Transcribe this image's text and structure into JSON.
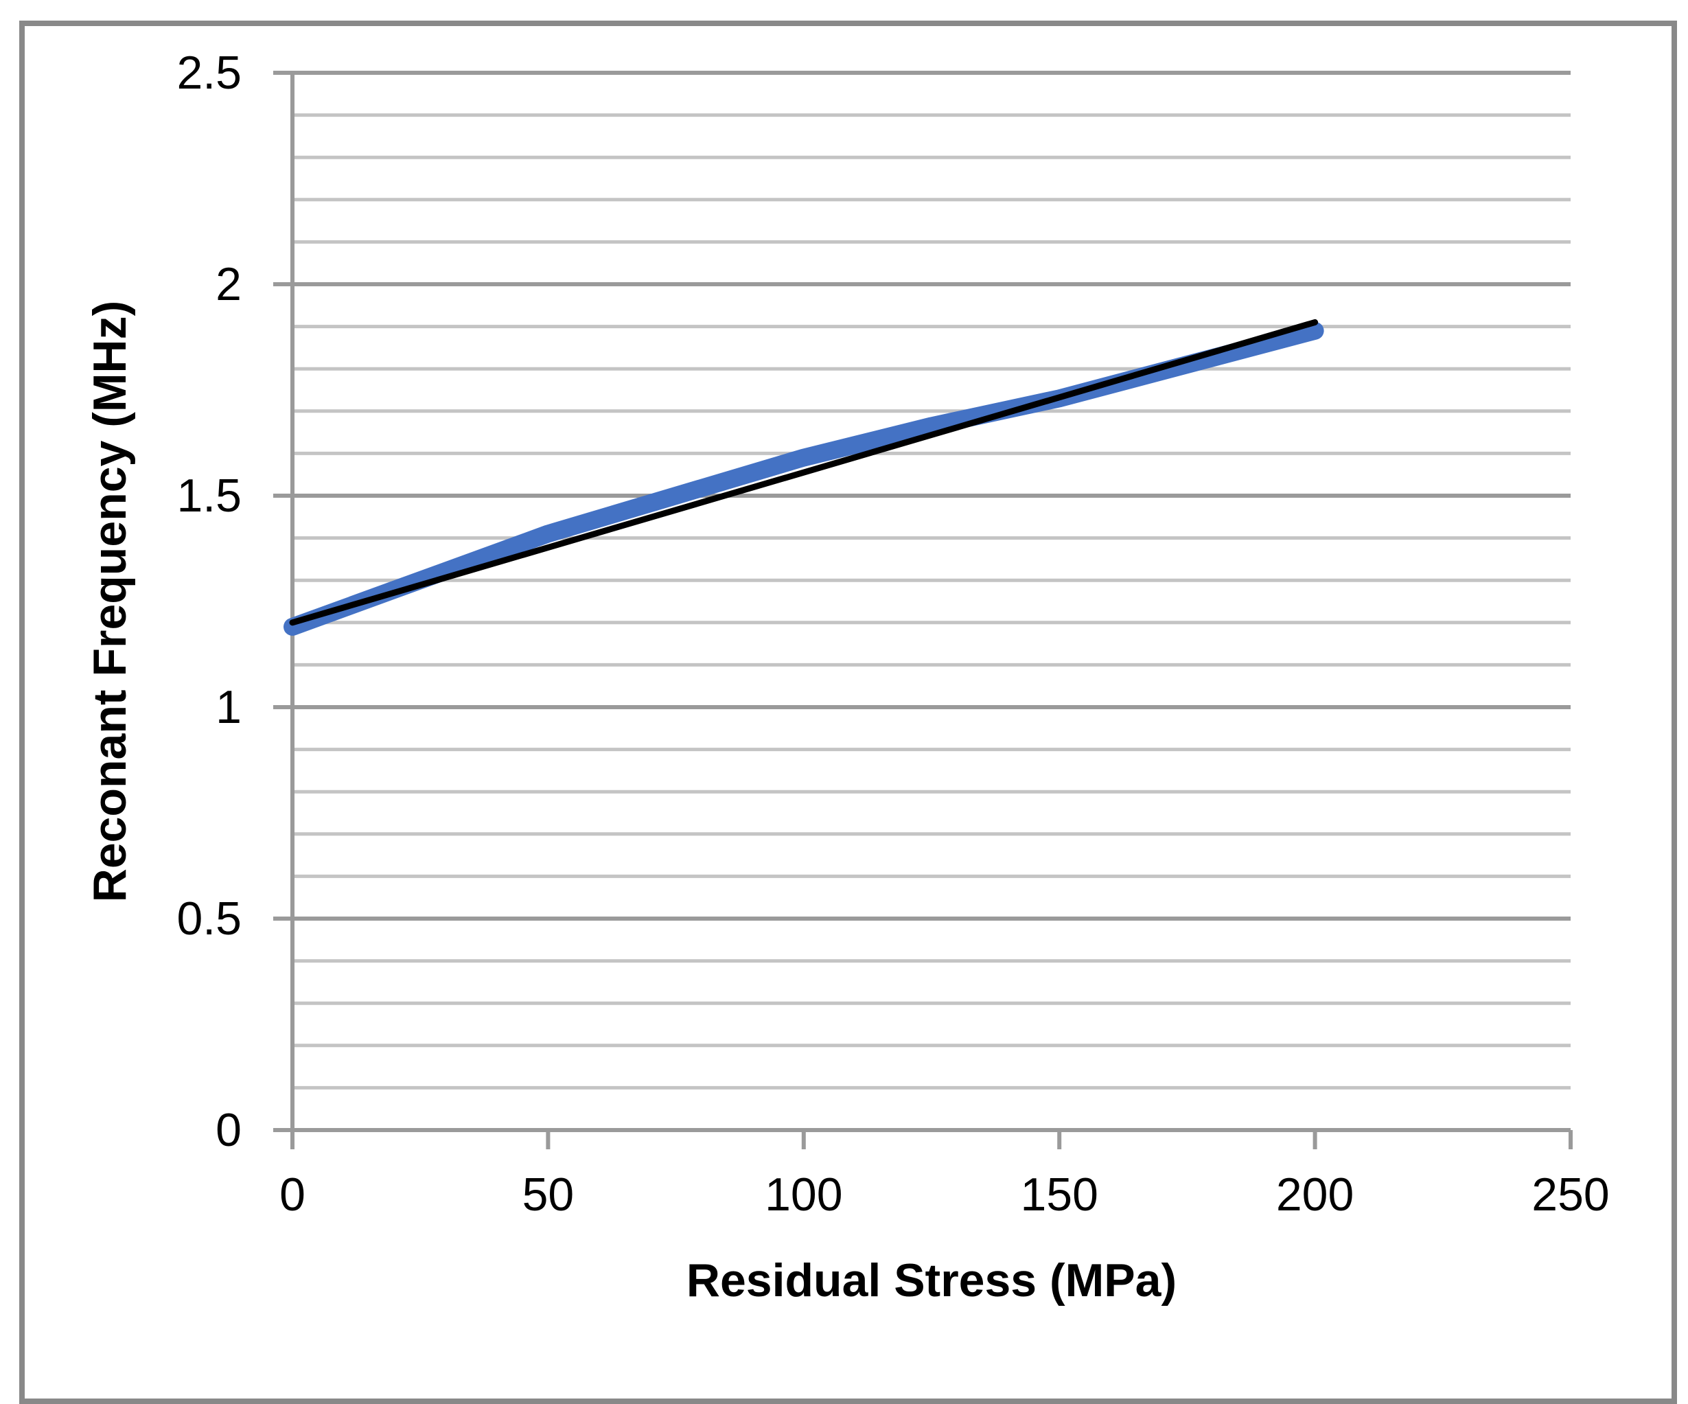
{
  "chart_data": {
    "type": "line",
    "title": "",
    "xlabel": "Residual Stress (MPa)",
    "ylabel": "Reconant Frequency (MHz)",
    "legend": "none",
    "grid": {
      "major": true,
      "minor": true,
      "minor_step_axis": "y"
    },
    "x_axis": {
      "min": 0,
      "max": 250,
      "tick_step": 50,
      "tick_labels": [
        "0",
        "50",
        "100",
        "150",
        "200",
        "250"
      ]
    },
    "y_axis": {
      "min": 0,
      "max": 2.5,
      "major_step": 0.5,
      "minor_step": 0.1,
      "tick_labels": [
        "0",
        "0.5",
        "1",
        "1.5",
        "2",
        "2.5"
      ]
    },
    "series": [
      {
        "name": "resonant-frequency-curve",
        "kind": "data",
        "color": "#4472C4",
        "stroke_width": 26,
        "x": [
          0,
          25,
          50,
          75,
          100,
          125,
          150,
          175,
          200
        ],
        "y": [
          1.19,
          1.3,
          1.41,
          1.5,
          1.59,
          1.665,
          1.73,
          1.81,
          1.89
        ]
      },
      {
        "name": "linear-trendline",
        "kind": "trendline",
        "color": "#000000",
        "stroke_width": 9,
        "x": [
          0,
          200
        ],
        "y": [
          1.2,
          1.91
        ]
      }
    ]
  },
  "colors": {
    "background": "#FFFFFF",
    "chart_border": "#898989",
    "axis_line": "#9A9A9A",
    "major_gridline": "#9A9A9A",
    "minor_gridline": "#C4C4C4",
    "series_blue": "#4472C4",
    "trendline_black": "#000000",
    "text": "#000000"
  }
}
